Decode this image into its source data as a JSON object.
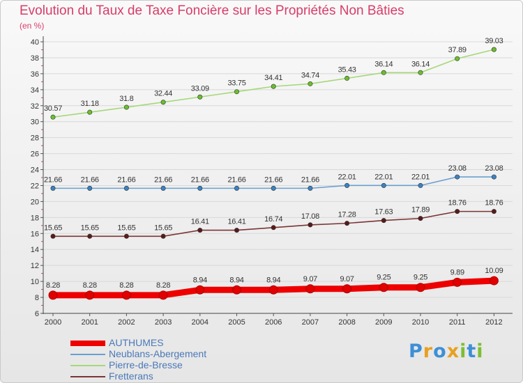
{
  "title": "Evolution du Taux de Taxe Foncière sur les Propriétés Non Bâties",
  "subtitle": "(en %)",
  "logo": {
    "letters": [
      "P",
      "r",
      "o",
      "x",
      "i",
      "t",
      "i"
    ],
    "colors": [
      "#3d8fd6",
      "#e8a020",
      "#3d8fd6",
      "#e8a020",
      "#7cbf33",
      "#3d8fd6",
      "#7cbf33"
    ]
  },
  "chart_data": {
    "type": "line",
    "categories": [
      "2000",
      "2001",
      "2002",
      "2003",
      "2004",
      "2005",
      "2006",
      "2007",
      "2008",
      "2009",
      "2010",
      "2011",
      "2012"
    ],
    "ylim": [
      6,
      40
    ],
    "yticks": [
      "6",
      "8",
      "10",
      "12",
      "14",
      "16",
      "18",
      "20",
      "22",
      "24",
      "26",
      "28",
      "30",
      "32",
      "34",
      "36",
      "38",
      "40"
    ],
    "grid": true,
    "legend_position": "bottom-left",
    "series": [
      {
        "name": "AUTHUMES",
        "color": "#ee0000",
        "emphasis": true,
        "values": [
          8.28,
          8.28,
          8.28,
          8.28,
          8.94,
          8.94,
          8.94,
          9.07,
          9.07,
          9.25,
          9.25,
          9.89,
          10.09
        ],
        "labels": [
          "8.28",
          "8.28",
          "8.28",
          "8.28",
          "8.94",
          "8.94",
          "8.94",
          "9.07",
          "9.07",
          "9.25",
          "9.25",
          "9.89",
          "10.09"
        ]
      },
      {
        "name": "Neublans-Abergement",
        "color": "#6a9fd0",
        "marker": "#3b82c4",
        "values": [
          21.66,
          21.66,
          21.66,
          21.66,
          21.66,
          21.66,
          21.66,
          21.66,
          22.01,
          22.01,
          22.01,
          23.08,
          23.08
        ],
        "labels": [
          "21.66",
          "21.66",
          "21.66",
          "21.66",
          "21.66",
          "21.66",
          "21.66",
          "21.66",
          "22.01",
          "22.01",
          "22.01",
          "23.08",
          "23.08"
        ]
      },
      {
        "name": "Pierre-de-Bresse",
        "color": "#a6d87a",
        "marker": "#6bbf2d",
        "values": [
          30.57,
          31.18,
          31.8,
          32.44,
          33.09,
          33.75,
          34.41,
          34.74,
          35.43,
          36.14,
          36.14,
          37.89,
          39.03
        ],
        "labels": [
          "30.57",
          "31.18",
          "31.8",
          "32.44",
          "33.09",
          "33.75",
          "34.41",
          "34.74",
          "35.43",
          "36.14",
          "36.14",
          "37.89",
          "39.03"
        ]
      },
      {
        "name": "Fretterans",
        "color": "#7a3535",
        "marker": "#5a1a1a",
        "values": [
          15.65,
          15.65,
          15.65,
          15.65,
          16.41,
          16.41,
          16.74,
          17.08,
          17.28,
          17.63,
          17.89,
          18.76,
          18.76
        ],
        "labels": [
          "15.65",
          "15.65",
          "15.65",
          "15.65",
          "16.41",
          "16.41",
          "16.74",
          "17.08",
          "17.28",
          "17.63",
          "17.89",
          "18.76",
          "18.76"
        ]
      }
    ]
  }
}
